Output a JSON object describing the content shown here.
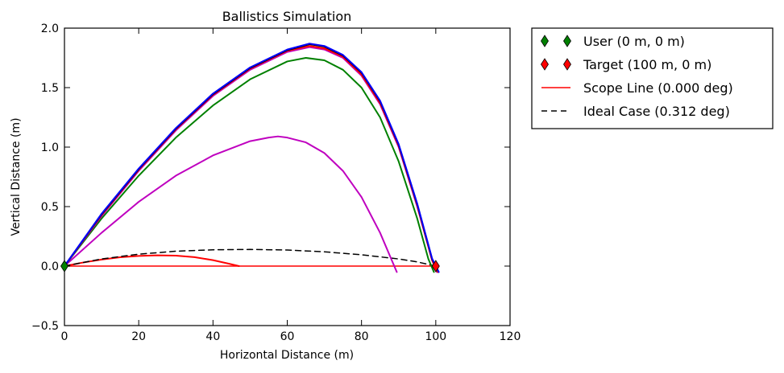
{
  "chart_data": {
    "type": "line",
    "title": "Ballistics Simulation",
    "xlabel": "Horizontal Distance (m)",
    "ylabel": "Vertical Distance (m)",
    "xlim": [
      0,
      120
    ],
    "ylim": [
      -0.5,
      2.0
    ],
    "xticks": [
      "0",
      "20",
      "40",
      "60",
      "80",
      "100",
      "120"
    ],
    "yticks": [
      "−0.5",
      "0.0",
      "0.5",
      "1.0",
      "1.5",
      "2.0"
    ],
    "grid": false,
    "legend_position": "outside-top-right",
    "legend": [
      {
        "label": "User (0 m, 0 m)",
        "kind": "marker",
        "color": "#008000"
      },
      {
        "label": "Target (100 m, 0 m)",
        "kind": "marker",
        "color": "#ff0000"
      },
      {
        "label": "Scope Line (0.000 deg)",
        "kind": "line",
        "color": "#ff0000",
        "dash": "solid"
      },
      {
        "label": "Ideal Case (0.312 deg)",
        "kind": "line",
        "color": "#000000",
        "dash": "dashed"
      }
    ],
    "markers": [
      {
        "x": 0,
        "y": 0,
        "color": "#008000"
      },
      {
        "x": 100,
        "y": 0,
        "color": "#ff0000"
      }
    ],
    "reference_lines": [
      {
        "color": "#ff0000",
        "dash": "solid",
        "x": [
          0,
          100
        ],
        "y": [
          0,
          0
        ]
      }
    ],
    "series": [
      {
        "color": "#ff0000",
        "style": "solid",
        "x": [
          0,
          5,
          10,
          15,
          20,
          25,
          30,
          35,
          40,
          44,
          47
        ],
        "y": [
          0,
          0.03,
          0.055,
          0.074,
          0.085,
          0.09,
          0.088,
          0.075,
          0.05,
          0.022,
          0
        ]
      },
      {
        "color": "#000000",
        "style": "dashed",
        "x": [
          0,
          10,
          20,
          30,
          40,
          50,
          60,
          70,
          80,
          90,
          95,
          100
        ],
        "y": [
          0,
          0.06,
          0.1,
          0.125,
          0.137,
          0.14,
          0.135,
          0.12,
          0.095,
          0.06,
          0.035,
          0
        ]
      },
      {
        "color": "#bf00bf",
        "style": "solid",
        "x": [
          0,
          10,
          20,
          30,
          40,
          50,
          55,
          57.5,
          60,
          65,
          70,
          75,
          80,
          85,
          88,
          89.5
        ],
        "y": [
          0,
          0.28,
          0.54,
          0.76,
          0.93,
          1.05,
          1.08,
          1.09,
          1.08,
          1.04,
          0.95,
          0.8,
          0.58,
          0.28,
          0.06,
          -0.05
        ]
      },
      {
        "color": "#008000",
        "style": "solid",
        "x": [
          0,
          10,
          20,
          30,
          40,
          50,
          60,
          65,
          70,
          75,
          80,
          85,
          90,
          95,
          98,
          99.5
        ],
        "y": [
          0,
          0.4,
          0.76,
          1.08,
          1.35,
          1.57,
          1.72,
          1.75,
          1.73,
          1.65,
          1.5,
          1.25,
          0.88,
          0.4,
          0.06,
          -0.05
        ]
      },
      {
        "color": "#bf00bf",
        "style": "solid",
        "x": [
          0,
          10,
          20,
          30,
          40,
          50,
          60,
          66,
          70,
          75,
          80,
          85,
          90,
          95,
          99,
          100.3
        ],
        "y": [
          0,
          0.42,
          0.8,
          1.14,
          1.43,
          1.65,
          1.8,
          1.84,
          1.82,
          1.75,
          1.6,
          1.36,
          1.0,
          0.5,
          0.05,
          -0.05
        ]
      },
      {
        "color": "#ff0000",
        "style": "solid",
        "x": [
          0,
          10,
          20,
          30,
          40,
          50,
          60,
          66,
          70,
          75,
          80,
          85,
          90,
          95,
          99,
          100.5
        ],
        "y": [
          0,
          0.43,
          0.81,
          1.15,
          1.44,
          1.66,
          1.81,
          1.85,
          1.83,
          1.76,
          1.61,
          1.37,
          1.01,
          0.51,
          0.05,
          -0.05
        ]
      },
      {
        "color": "#000000",
        "style": "solid",
        "x": [
          0,
          10,
          20,
          30,
          40,
          50,
          60,
          66,
          70,
          75,
          80,
          85,
          90,
          95,
          99,
          100.8
        ],
        "y": [
          0,
          0.435,
          0.815,
          1.155,
          1.445,
          1.665,
          1.815,
          1.865,
          1.845,
          1.77,
          1.625,
          1.385,
          1.02,
          0.52,
          0.06,
          -0.05
        ]
      },
      {
        "color": "#0000ff",
        "style": "solid",
        "x": [
          0,
          10,
          20,
          30,
          40,
          50,
          60,
          66,
          70,
          75,
          80,
          85,
          90,
          95,
          99,
          100.8
        ],
        "y": [
          0,
          0.44,
          0.82,
          1.16,
          1.45,
          1.67,
          1.82,
          1.87,
          1.85,
          1.775,
          1.63,
          1.39,
          1.025,
          0.525,
          0.065,
          -0.05
        ]
      }
    ]
  }
}
